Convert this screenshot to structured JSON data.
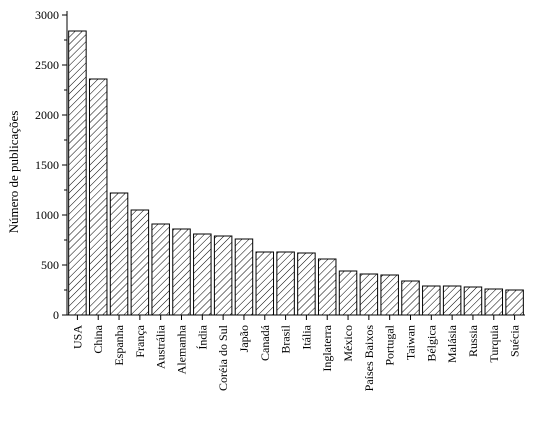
{
  "chart_data": {
    "type": "bar",
    "title": "",
    "xlabel": "",
    "ylabel": "Número de publicações",
    "ylim": [
      0,
      3000
    ],
    "yticks": [
      0,
      500,
      1000,
      1500,
      2000,
      2500,
      3000
    ],
    "grid": false,
    "legend": "none",
    "bar_fill": "hatched",
    "colors": {
      "bar_stroke": "#000000",
      "hatch": "#000000",
      "background": "#ffffff"
    },
    "categories": [
      "USA",
      "China",
      "Espanha",
      "França",
      "Austrália",
      "Alemanha",
      "Índia",
      "Coréia do Sul",
      "Japão",
      "Canadá",
      "Brasil",
      "Itália",
      "Inglaterra",
      "México",
      "Países Baixos",
      "Portugal",
      "Taiwan",
      "Bélgica",
      "Malásia",
      "Russia",
      "Turquia",
      "Suécia"
    ],
    "values": [
      2840,
      2360,
      1220,
      1050,
      910,
      860,
      810,
      790,
      760,
      630,
      630,
      620,
      560,
      440,
      410,
      400,
      340,
      290,
      290,
      280,
      260,
      250
    ]
  }
}
